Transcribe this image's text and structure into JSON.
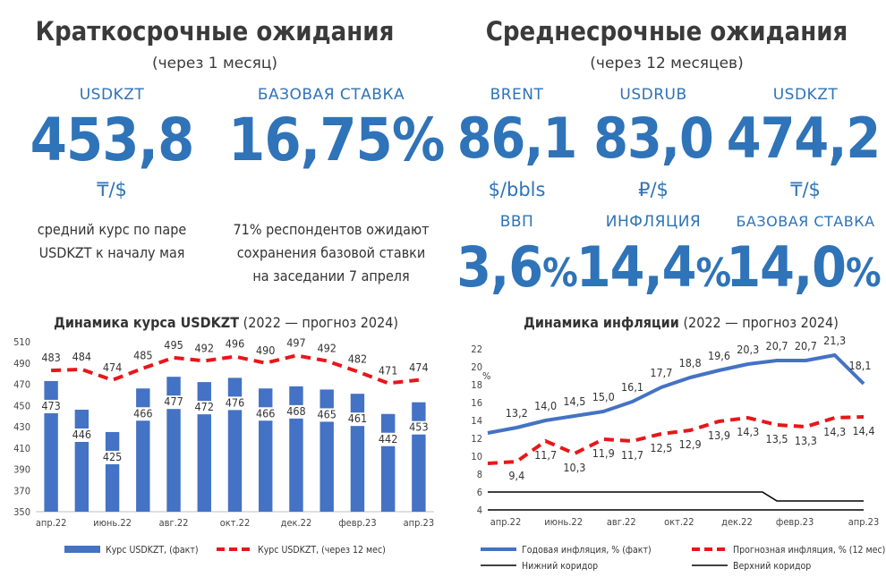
{
  "left": {
    "title": "Краткосрочные ожидания",
    "subtitle": "(через 1 месяц)",
    "metrics": [
      {
        "label": "USDKZT",
        "value": "453,8",
        "unit": "₸/$"
      },
      {
        "label": "БАЗОВАЯ СТАВКА",
        "value": "16,75%"
      }
    ],
    "note1": [
      "средний курс по паре",
      "USDKZT к началу мая"
    ],
    "note2": [
      "71% респондентов ожидают",
      "сохранения базовой ставки",
      "на заседании 7 апреля"
    ]
  },
  "right": {
    "title": "Среднесрочные ожидания",
    "subtitle": "(через 12 месяцев)",
    "row1": [
      {
        "label": "BRENT",
        "value": "86,1",
        "unit": "$/bbls"
      },
      {
        "label": "USDRUB",
        "value": "83,0",
        "unit": "₽/$"
      },
      {
        "label": "USDKZT",
        "value": "474,2",
        "unit": "₸/$"
      }
    ],
    "row2": [
      {
        "label": "ВВП",
        "value": "3,6",
        "suffix": "%"
      },
      {
        "label": "ИНФЛЯЦИЯ",
        "value": "14,4",
        "suffix": "%"
      },
      {
        "label": "БАЗОВАЯ СТАВКА",
        "value": "14,0",
        "suffix": "%"
      }
    ]
  },
  "chart_data": [
    {
      "type": "bar",
      "title": "Динамика курса USDKZT",
      "subtitle": "(2022 — прогноз 2024)",
      "ylim": [
        350,
        510
      ],
      "yticks": [
        350,
        370,
        390,
        410,
        430,
        450,
        470,
        490,
        510
      ],
      "x_tick_labels": [
        "апр.22",
        "июнь.22",
        "авг.22",
        "окт.22",
        "дек.22",
        "февр.23",
        "апр.23"
      ],
      "series": [
        {
          "name": "Курс USDKZT, (факт)",
          "kind": "bar",
          "color": "#4472c4",
          "values": [
            473,
            446,
            425,
            466,
            477,
            472,
            476,
            466,
            468,
            465,
            461,
            442,
            453
          ]
        },
        {
          "name": "Курс USDKZT, (через 12 мес)",
          "kind": "line-dashed",
          "color": "#e8161a",
          "values": [
            483,
            484,
            474,
            485,
            495,
            492,
            496,
            490,
            497,
            492,
            482,
            471,
            474
          ]
        }
      ]
    },
    {
      "type": "line",
      "title": "Динамика инфляции",
      "subtitle": "(2022 — прогноз 2024)",
      "yunit": "%",
      "ylim": [
        4,
        22
      ],
      "yticks": [
        4,
        6,
        8,
        10,
        12,
        14,
        16,
        18,
        20,
        22
      ],
      "x_tick_labels": [
        "апр.22",
        "июнь.22",
        "авг.22",
        "окт.22",
        "дек.22",
        "февр.23",
        "апр.23"
      ],
      "series": [
        {
          "name": "Годовая инфляция, % (факт)",
          "kind": "line",
          "color": "#4472c4",
          "values": [
            12.6,
            13.2,
            14.0,
            14.5,
            15.0,
            16.1,
            17.7,
            18.8,
            19.6,
            20.3,
            20.7,
            20.7,
            21.3,
            18.1
          ],
          "labels": [
            "",
            "13,2",
            "14,0",
            "14,5",
            "15,0",
            "16,1",
            "17,7",
            "18,8",
            "19,6",
            "20,3",
            "20,7",
            "20,7",
            "21,3",
            "18,1"
          ]
        },
        {
          "name": "Прогнозная инфляция, % (12 мес)",
          "kind": "line-dashed",
          "color": "#e8161a",
          "values": [
            9.2,
            9.4,
            11.7,
            10.3,
            11.9,
            11.7,
            12.5,
            12.9,
            13.9,
            14.3,
            13.5,
            13.3,
            14.3,
            14.4
          ],
          "labels": [
            "",
            "9,4",
            "11,7",
            "10,3",
            "11,9",
            "11,7",
            "12,5",
            "12,9",
            "13,9",
            "14,3",
            "13,5",
            "13,3",
            "14,3",
            "14,4"
          ]
        },
        {
          "name": "Нижний коридор",
          "kind": "line",
          "color": "#000000",
          "values": [
            6,
            6,
            6,
            6,
            6,
            6,
            6,
            6,
            6,
            6,
            5,
            5,
            5,
            5
          ]
        },
        {
          "name": "Верхний коридор",
          "kind": "line",
          "color": "#000000",
          "values": [
            4,
            4,
            4,
            4,
            4,
            4,
            4,
            4,
            4,
            4,
            4,
            4,
            4,
            4
          ]
        }
      ]
    }
  ]
}
